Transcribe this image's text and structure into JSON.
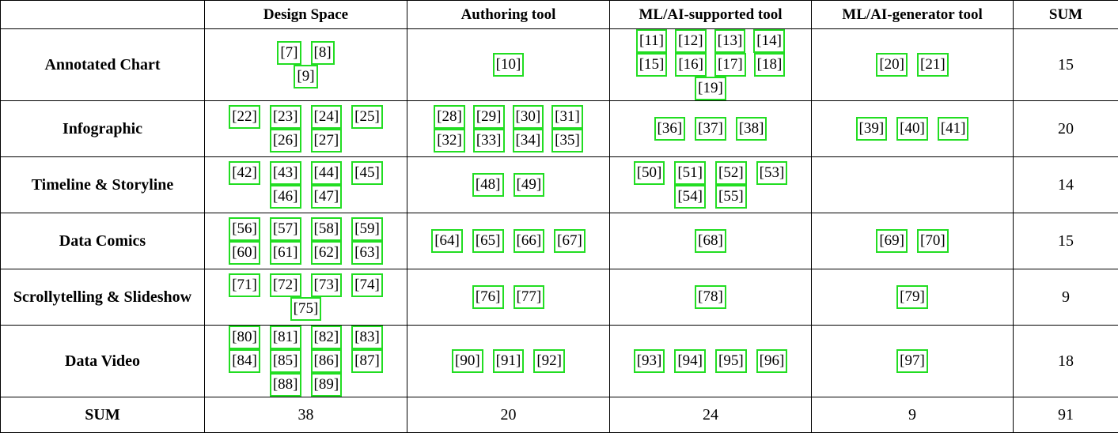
{
  "table": {
    "headers": [
      "",
      "Design Space",
      "Authoring tool",
      "ML/AI-supported tool",
      "ML/AI-generator tool",
      "SUM"
    ],
    "rows": [
      {
        "label": "Annotated Chart",
        "design_space": [
          "[7]",
          "[8]",
          "[9]"
        ],
        "authoring_tool": [
          "[10]"
        ],
        "ml_ai_supported": [
          "[11]",
          "[12]",
          "[13]",
          "[14]",
          "[15]",
          "[16]",
          "[17]",
          "[18]",
          "[19]"
        ],
        "ml_ai_generator": [
          "[20]",
          "[21]"
        ],
        "sum": "15"
      },
      {
        "label": "Infographic",
        "design_space": [
          "[22]",
          "[23]",
          "[24]",
          "[25]",
          "[26]",
          "[27]"
        ],
        "authoring_tool": [
          "[28]",
          "[29]",
          "[30]",
          "[31]",
          "[32]",
          "[33]",
          "[34]",
          "[35]"
        ],
        "ml_ai_supported": [
          "[36]",
          "[37]",
          "[38]"
        ],
        "ml_ai_generator": [
          "[39]",
          "[40]",
          "[41]"
        ],
        "sum": "20"
      },
      {
        "label": "Timeline & Storyline",
        "design_space": [
          "[42]",
          "[43]",
          "[44]",
          "[45]",
          "[46]",
          "[47]"
        ],
        "authoring_tool": [
          "[48]",
          "[49]"
        ],
        "ml_ai_supported": [
          "[50]",
          "[51]",
          "[52]",
          "[53]",
          "[54]",
          "[55]"
        ],
        "ml_ai_generator": [],
        "sum": "14"
      },
      {
        "label": "Data Comics",
        "design_space": [
          "[56]",
          "[57]",
          "[58]",
          "[59]",
          "[60]",
          "[61]",
          "[62]",
          "[63]"
        ],
        "authoring_tool": [
          "[64]",
          "[65]",
          "[66]",
          "[67]"
        ],
        "ml_ai_supported": [
          "[68]"
        ],
        "ml_ai_generator": [
          "[69]",
          "[70]"
        ],
        "sum": "15"
      },
      {
        "label": "Scrollytelling & Slideshow",
        "design_space": [
          "[71]",
          "[72]",
          "[73]",
          "[74]",
          "[75]"
        ],
        "authoring_tool": [
          "[76]",
          "[77]"
        ],
        "ml_ai_supported": [
          "[78]"
        ],
        "ml_ai_generator": [
          "[79]"
        ],
        "sum": "9"
      },
      {
        "label": "Data Video",
        "design_space": [
          "[80]",
          "[81]",
          "[82]",
          "[83]",
          "[84]",
          "[85]",
          "[86]",
          "[87]",
          "[88]",
          "[89]"
        ],
        "authoring_tool": [
          "[90]",
          "[91]",
          "[92]"
        ],
        "ml_ai_supported": [
          "[93]",
          "[94]",
          "[95]",
          "[96]"
        ],
        "ml_ai_generator": [
          "[97]"
        ],
        "sum": "18"
      }
    ],
    "sum_row": {
      "label": "SUM",
      "design_space": "38",
      "authoring_tool": "20",
      "ml_ai_supported": "24",
      "ml_ai_generator": "9",
      "total": "91"
    },
    "colors": {
      "highlight_box": "#22dd22",
      "text": "#000000",
      "border": "#000000"
    }
  }
}
